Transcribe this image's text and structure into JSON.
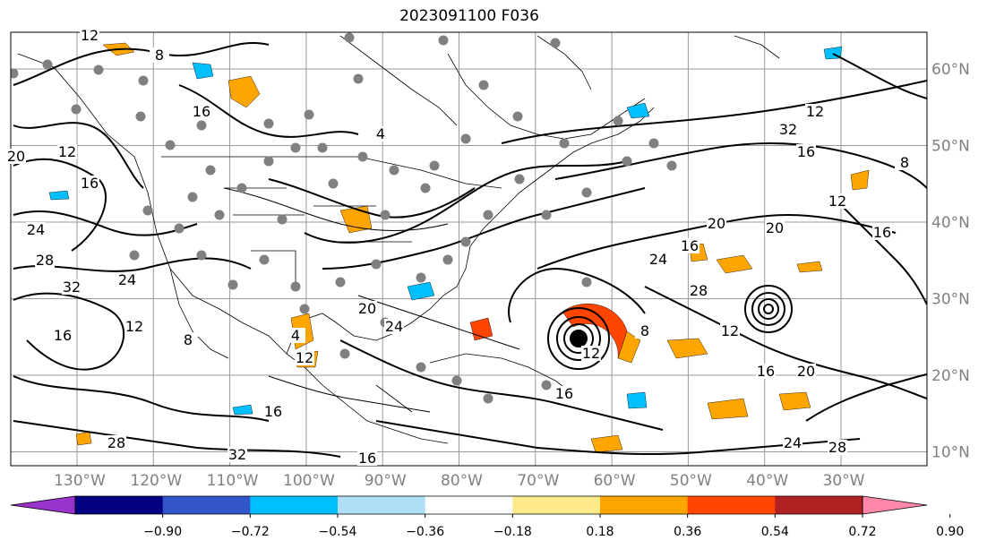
{
  "title": "2023091100 F036",
  "latitude_labels": [
    "60°N",
    "50°N",
    "40°N",
    "30°N",
    "20°N",
    "10°N"
  ],
  "longitude_labels": [
    "130°W",
    "120°W",
    "110°W",
    "100°W",
    "90°W",
    "80°W",
    "70°W",
    "60°W",
    "50°W",
    "40°W",
    "30°W"
  ],
  "colorbar": {
    "tick_labels": [
      "−0.90",
      "−0.72",
      "−0.54",
      "−0.36",
      "−0.18",
      "0.18",
      "0.36",
      "0.54",
      "0.72",
      "0.90"
    ],
    "colors": [
      "#9933cc",
      "#000080",
      "#3355cc",
      "#00bfff",
      "#b0e0f8",
      "#ffffff",
      "#ffea8a",
      "#ffa500",
      "#ff4500",
      "#b22222",
      "#ff88aa"
    ]
  },
  "contour_labels": [
    "12",
    "8",
    "4",
    "16",
    "12",
    "16",
    "20",
    "24",
    "28",
    "32",
    "24",
    "16",
    "12",
    "8",
    "4",
    "12",
    "16",
    "20",
    "24",
    "28",
    "32",
    "16",
    "12",
    "8",
    "16",
    "20",
    "24",
    "28",
    "32",
    "12",
    "16",
    "8",
    "12",
    "16",
    "20",
    "12",
    "16",
    "24",
    "28",
    "20",
    "16"
  ],
  "colors": {
    "grid": "#999999",
    "contour": "#000000",
    "station": "#808080",
    "hurricane_center": "#000000"
  }
}
